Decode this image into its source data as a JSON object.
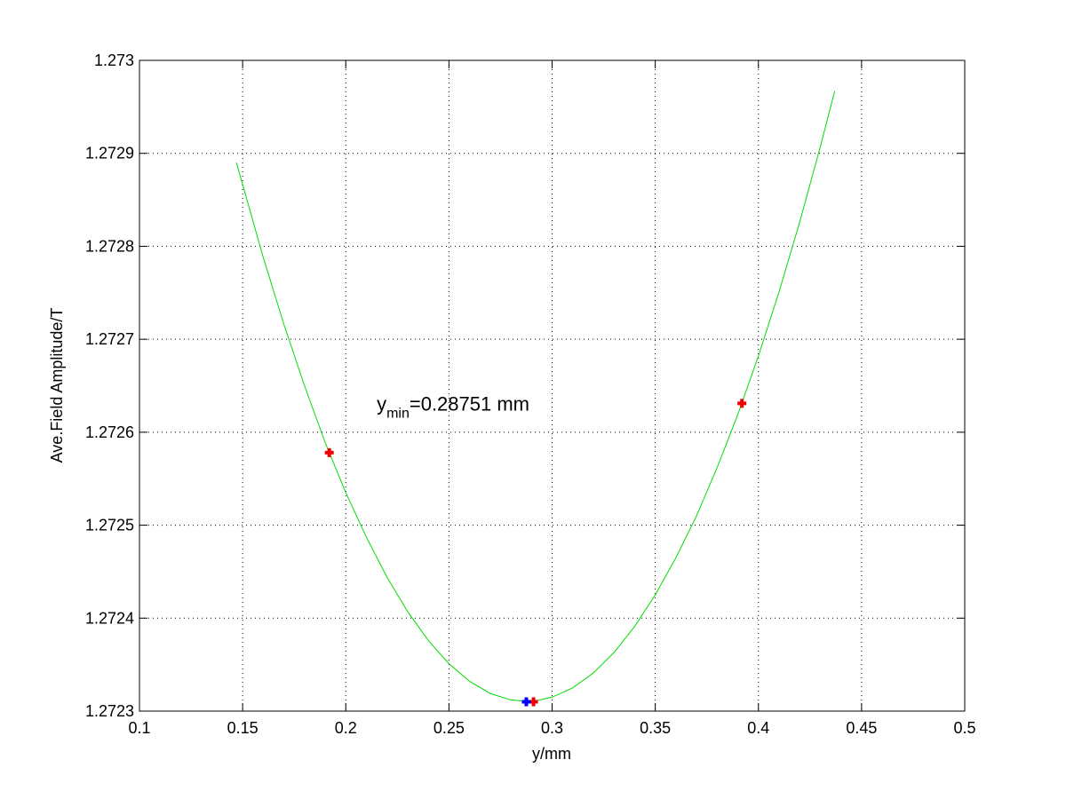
{
  "chart_data": {
    "type": "line",
    "xlabel": "y/mm",
    "ylabel": "Ave.Field Amplitude/T",
    "annotation": {
      "base": "y",
      "subscript": "min",
      "text": "=0.28751 mm",
      "x": 0.215,
      "y": 1.27263
    },
    "xlim": [
      0.1,
      0.5
    ],
    "ylim": [
      1.2723,
      1.273
    ],
    "xticks": [
      0.1,
      0.15,
      0.2,
      0.25,
      0.3,
      0.35,
      0.4,
      0.45,
      0.5
    ],
    "yticks": [
      1.2723,
      1.2724,
      1.2725,
      1.2726,
      1.2727,
      1.2728,
      1.2729,
      1.273
    ],
    "grid": true,
    "series": [
      {
        "mode": "line",
        "color": "#00dd00",
        "x": [
          0.147,
          0.16,
          0.17,
          0.18,
          0.19,
          0.2,
          0.21,
          0.22,
          0.23,
          0.24,
          0.25,
          0.26,
          0.27,
          0.28,
          0.29,
          0.3,
          0.31,
          0.32,
          0.33,
          0.34,
          0.35,
          0.36,
          0.37,
          0.38,
          0.39,
          0.4,
          0.41,
          0.42,
          0.43,
          0.437
        ],
        "values": [
          1.27289,
          1.272788,
          1.272716,
          1.27265,
          1.272589,
          1.272535,
          1.272487,
          1.272444,
          1.272407,
          1.272376,
          1.272351,
          1.272332,
          1.272319,
          1.272312,
          1.27231,
          1.272315,
          1.272325,
          1.272341,
          1.272363,
          1.272391,
          1.272425,
          1.272465,
          1.27251,
          1.272562,
          1.272619,
          1.272682,
          1.272751,
          1.272826,
          1.272907,
          1.272967
        ]
      },
      {
        "mode": "markers",
        "color": "#ee0000",
        "x": [
          0.192,
          0.291,
          0.392
        ],
        "values": [
          1.272578,
          1.27231,
          1.272631
        ]
      },
      {
        "mode": "markers",
        "color": "#0000ff",
        "x": [
          0.2875
        ],
        "values": [
          1.27231
        ]
      }
    ]
  }
}
